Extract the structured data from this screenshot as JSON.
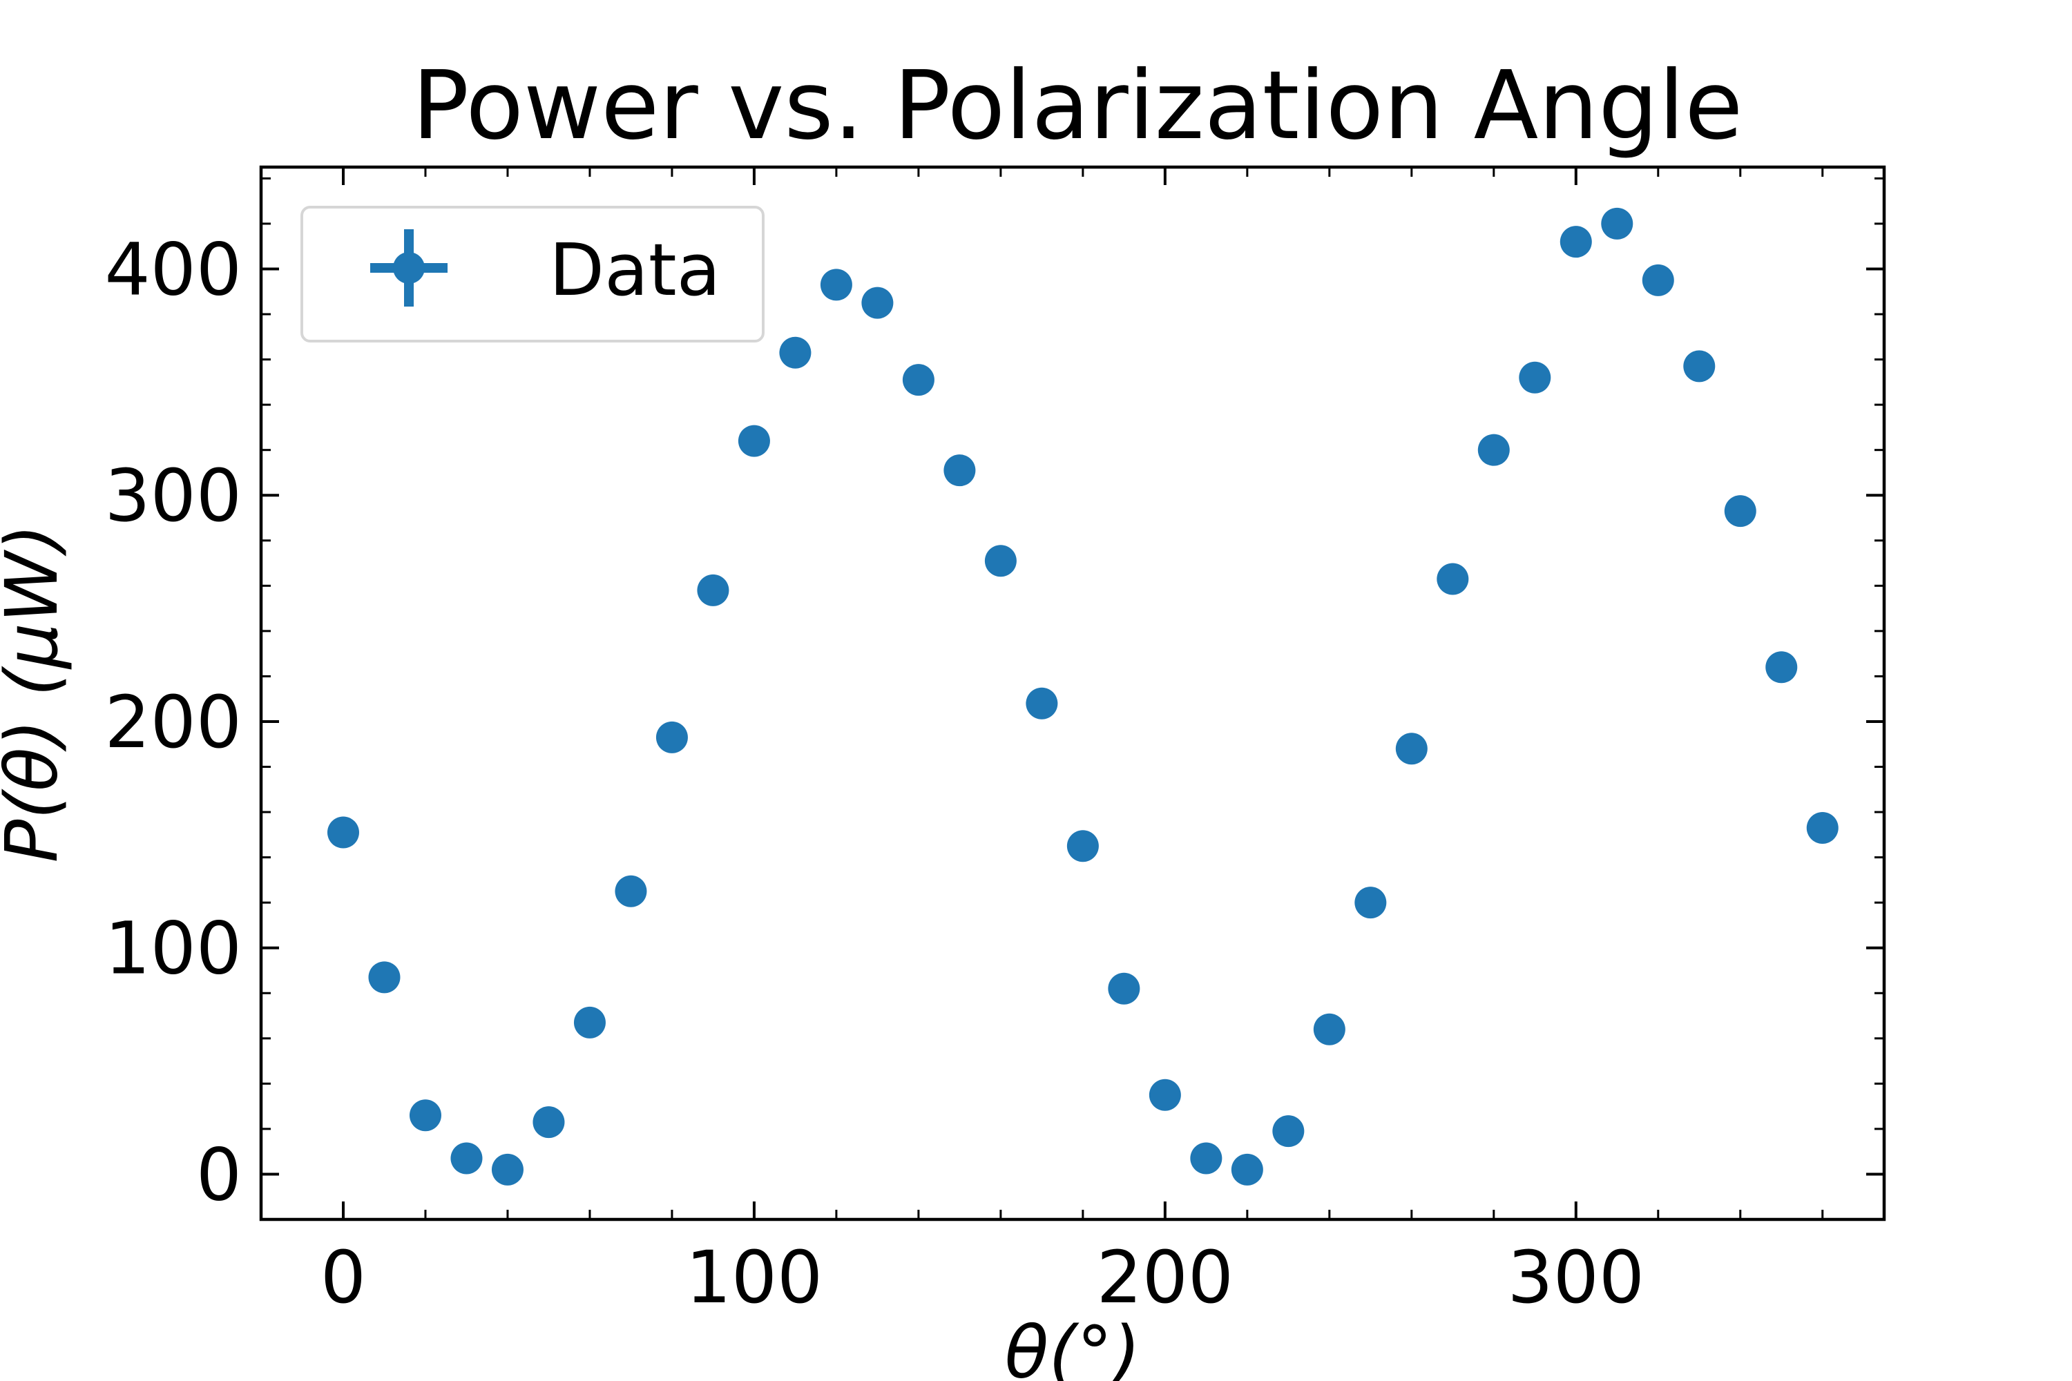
{
  "chart_data": {
    "type": "scatter",
    "title": "Power vs. Polarization Angle",
    "xlabel": "θ(°)",
    "ylabel": "P(θ) (μW)",
    "xlim": [
      -20,
      375
    ],
    "ylim": [
      -20,
      445
    ],
    "xticks": [
      0,
      100,
      200,
      300
    ],
    "yticks": [
      0,
      100,
      200,
      300,
      400
    ],
    "grid": false,
    "legend_position": "top-left",
    "series": [
      {
        "name": "Data",
        "color": "#1f77b4",
        "marker": "circle-with-errorbars",
        "x": [
          0,
          10,
          20,
          30,
          40,
          50,
          60,
          70,
          80,
          90,
          100,
          110,
          120,
          130,
          140,
          150,
          160,
          170,
          180,
          190,
          200,
          210,
          220,
          230,
          240,
          250,
          260,
          270,
          280,
          290,
          300,
          310,
          320,
          330,
          340,
          350,
          360
        ],
        "y": [
          151,
          87,
          26,
          7,
          2,
          23,
          67,
          125,
          193,
          258,
          324,
          363,
          393,
          385,
          351,
          311,
          271,
          208,
          145,
          82,
          35,
          7,
          2,
          19,
          64,
          120,
          188,
          263,
          320,
          352,
          412,
          420,
          395,
          357,
          293,
          224,
          153
        ]
      }
    ]
  }
}
